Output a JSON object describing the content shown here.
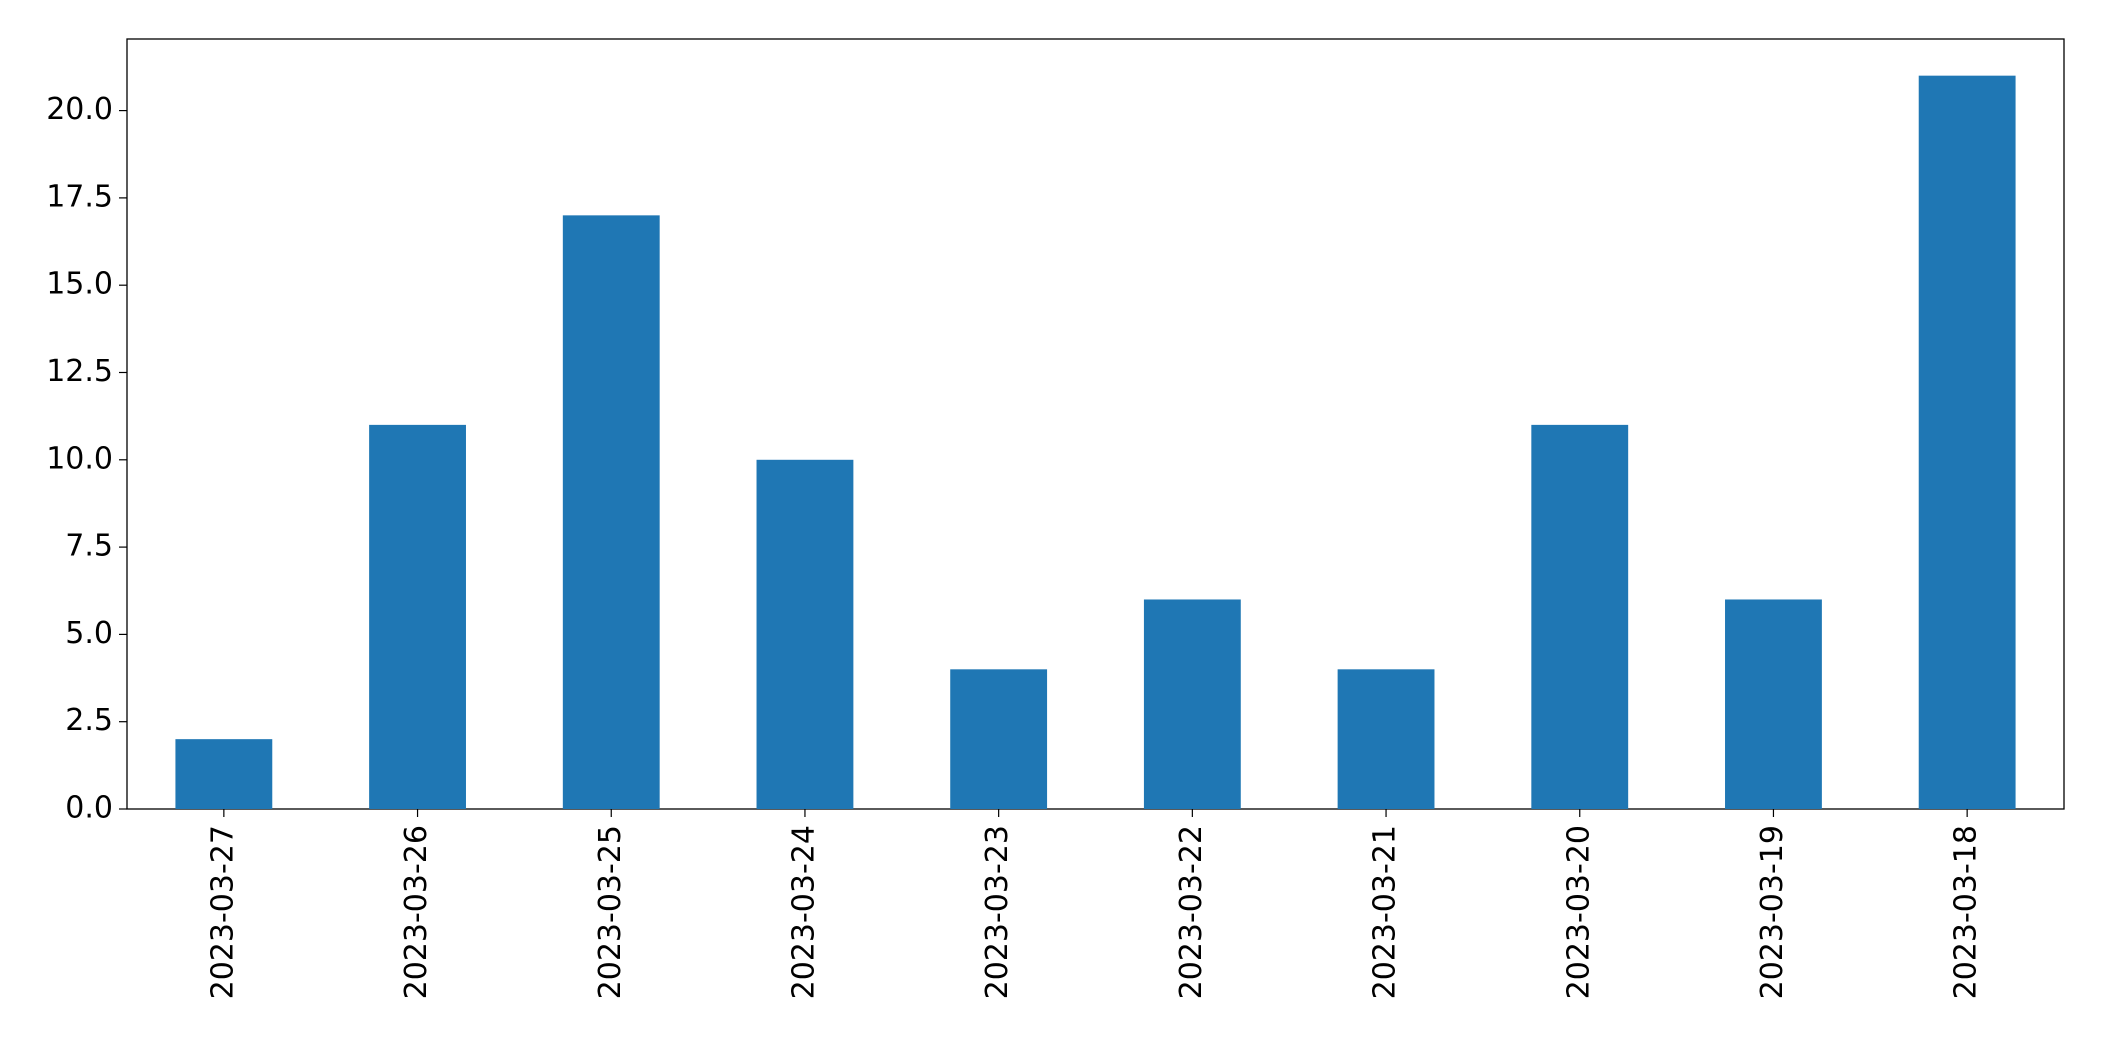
{
  "chart_data": {
    "type": "bar",
    "categories": [
      "2023-03-27",
      "2023-03-26",
      "2023-03-25",
      "2023-03-24",
      "2023-03-23",
      "2023-03-22",
      "2023-03-21",
      "2023-03-20",
      "2023-03-19",
      "2023-03-18"
    ],
    "values": [
      2,
      11,
      17,
      10,
      4,
      6,
      4,
      11,
      6,
      21
    ],
    "color": "#1f77b4",
    "ylim": [
      0,
      22.05
    ],
    "yticks": [
      {
        "value": 0,
        "label": "0.0"
      },
      2.5,
      {
        "value": 5,
        "label": "5.0"
      },
      7.5,
      {
        "value": 10,
        "label": "10.0"
      },
      12.5,
      {
        "value": 15,
        "label": "15.0"
      },
      17.5,
      {
        "value": 20,
        "label": "20.0"
      }
    ],
    "grid": false
  }
}
